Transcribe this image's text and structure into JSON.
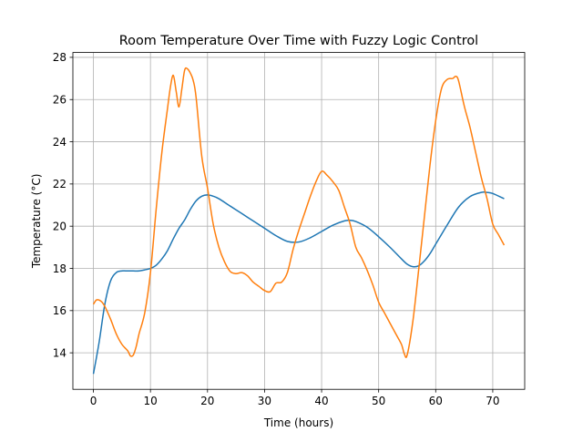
{
  "chart_data": {
    "type": "line",
    "title": "Room Temperature Over Time with Fuzzy Logic Control",
    "xlabel": "Time (hours)",
    "ylabel": "Temperature (°C)",
    "xlim": [
      -3.6,
      75.6
    ],
    "ylim": [
      12.27,
      28.23
    ],
    "xticks": [
      0,
      10,
      20,
      30,
      40,
      50,
      60,
      70
    ],
    "yticks": [
      14,
      16,
      18,
      20,
      22,
      24,
      26,
      28
    ],
    "grid": true,
    "series": [
      {
        "color": "#1f77b4",
        "x": [
          0,
          1,
          2,
          3,
          4,
          5,
          6,
          7,
          8,
          9,
          10,
          11,
          12,
          13,
          14,
          15,
          16,
          17,
          18,
          19,
          20,
          21,
          22,
          24,
          26,
          28,
          30,
          32,
          34,
          36,
          38,
          40,
          42,
          44,
          45,
          46,
          48,
          50,
          52,
          54,
          55,
          56,
          57,
          58,
          59,
          60,
          62,
          64,
          66,
          68,
          69,
          70,
          72
        ],
        "y": [
          13.0,
          14.5,
          16.3,
          17.4,
          17.8,
          17.88,
          17.88,
          17.88,
          17.88,
          17.93,
          18.0,
          18.15,
          18.45,
          18.85,
          19.4,
          19.9,
          20.3,
          20.8,
          21.2,
          21.42,
          21.48,
          21.42,
          21.3,
          20.95,
          20.6,
          20.25,
          19.9,
          19.55,
          19.28,
          19.25,
          19.45,
          19.75,
          20.05,
          20.25,
          20.28,
          20.22,
          19.95,
          19.5,
          19.0,
          18.45,
          18.2,
          18.08,
          18.12,
          18.35,
          18.7,
          19.15,
          20.05,
          20.9,
          21.4,
          21.6,
          21.6,
          21.55,
          21.3
        ]
      },
      {
        "color": "#ff7f0e",
        "x": [
          0,
          0.5,
          1,
          1.5,
          2,
          3,
          4,
          5,
          6,
          6.5,
          7,
          7.5,
          8,
          9,
          10,
          11,
          12,
          13,
          13.5,
          14,
          14.5,
          15,
          15.5,
          16,
          16.5,
          17,
          17.5,
          18,
          19,
          20,
          21,
          22,
          23,
          24,
          25,
          26,
          27,
          28,
          29,
          30,
          31,
          32,
          33,
          34,
          35,
          36,
          37,
          38,
          39,
          40,
          41,
          42,
          43,
          44,
          45,
          46,
          47,
          48,
          49,
          50,
          51,
          52,
          53,
          54,
          54.5,
          55,
          56,
          57,
          58,
          59,
          60,
          61,
          62,
          63,
          63.5,
          64,
          65,
          66,
          67,
          68,
          69,
          70,
          71,
          72
        ],
        "y": [
          16.3,
          16.5,
          16.5,
          16.4,
          16.2,
          15.6,
          14.9,
          14.4,
          14.1,
          13.85,
          13.9,
          14.3,
          14.9,
          15.9,
          17.8,
          20.8,
          23.5,
          25.6,
          26.6,
          27.15,
          26.4,
          25.65,
          26.5,
          27.4,
          27.45,
          27.25,
          26.9,
          26.1,
          23.3,
          21.8,
          20.1,
          19.0,
          18.3,
          17.85,
          17.75,
          17.8,
          17.65,
          17.35,
          17.15,
          16.95,
          16.9,
          17.3,
          17.35,
          17.8,
          18.9,
          19.8,
          20.6,
          21.4,
          22.1,
          22.6,
          22.4,
          22.1,
          21.7,
          20.9,
          20.1,
          19.0,
          18.5,
          17.9,
          17.2,
          16.4,
          15.9,
          15.4,
          14.9,
          14.4,
          13.95,
          13.9,
          15.5,
          17.9,
          20.4,
          22.9,
          25.0,
          26.5,
          26.95,
          27.0,
          27.1,
          26.9,
          25.7,
          24.7,
          23.5,
          22.3,
          21.3,
          20.1,
          19.6,
          19.1
        ]
      }
    ]
  }
}
